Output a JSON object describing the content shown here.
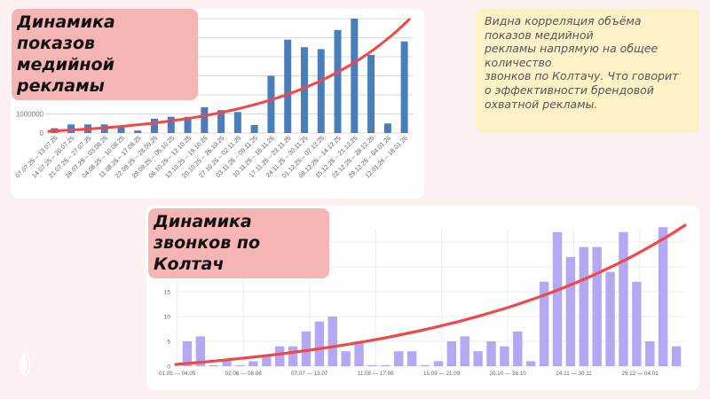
{
  "slide": {
    "background": "#fdf0f0",
    "note_text": "Видна корреляция объёма\nпоказов медийной\nрекламы напрямую на общее\nколичество\nзвонков по Колтачу. Что говорит\nо эффективности брендовой\nохватной рекламы."
  },
  "chart_data": [
    {
      "type": "bar",
      "title": "Динамика показов медийной рекламы",
      "xlabel": "",
      "ylabel": "",
      "ylim": [
        0,
        6000000
      ],
      "yticks": [
        "0",
        "1000000",
        "2000000",
        "3000000",
        "4000000"
      ],
      "grid": true,
      "bar_color": "#4a7ebb",
      "trendline": {
        "type": "exponential",
        "color": "#f04848"
      },
      "categories": [
        "07.07.25 – 13.07.25",
        "14.07.25 – 20.07.25",
        "21.07.25 – 27.07.25",
        "28.07.25 – 03.08.25",
        "04.08.25 – 10.08.25",
        "11.08.25 – 17.08.25",
        "22.09.25 – 28.09.25",
        "29.09.25 – 05.10.25",
        "06.10.25 – 12.10.25",
        "13.10.25 – 19.10.25",
        "20.10.25 – 26.10.25",
        "27.10.25 – 02.11.25",
        "03.11.25 – 09.11.25",
        "10.11.25 – 16.11.25",
        "17.11.25 – 23.11.25",
        "24.11.25 – 30.11.25",
        "01.12.25 – 07.12.25",
        "08.12.25 – 14.12.25",
        "15.12.25 – 21.12.25",
        "22.12.25 – 28.12.25",
        "29.12.25 – 04.01.26",
        "12.01.26 – 18.01.26"
      ],
      "values": [
        250000,
        450000,
        450000,
        450000,
        300000,
        130000,
        750000,
        850000,
        850000,
        1350000,
        1200000,
        1100000,
        420000,
        3000000,
        4900000,
        4500000,
        4400000,
        5400000,
        6000000,
        4100000,
        500000,
        4800000
      ]
    },
    {
      "type": "bar",
      "title": "Динамика звонков по Колтач",
      "xlabel": "",
      "ylabel": "",
      "ylim": [
        0,
        28
      ],
      "yticks": [
        "0",
        "5",
        "10",
        "15",
        "20"
      ],
      "grid": true,
      "bar_color": "#b4a8f5",
      "trendline": {
        "type": "exponential",
        "color": "#f04848"
      },
      "xtick_labels": [
        "01.05 — 04.05",
        "02.06 — 08.06",
        "07.07 — 13.07",
        "11.08 — 17.08",
        "15.09 — 21.09",
        "20.10 — 26.10",
        "24.11 — 30.11",
        "29.12 — 04.01"
      ],
      "values": [
        5,
        6,
        0.2,
        1,
        0.2,
        1,
        2,
        4,
        4,
        7,
        9,
        10,
        3,
        5,
        0.2,
        0.2,
        3,
        3,
        0.2,
        1,
        5,
        6,
        3,
        5,
        4,
        7,
        1,
        17,
        27,
        22,
        24,
        24,
        19,
        27,
        17,
        5,
        28,
        4
      ]
    }
  ]
}
